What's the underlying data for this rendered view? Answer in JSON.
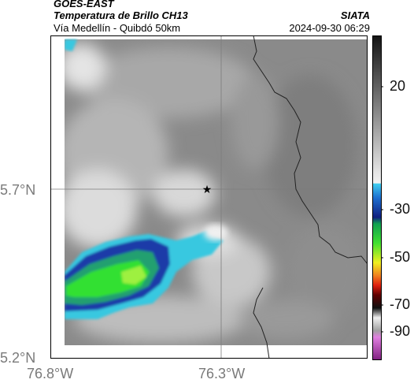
{
  "header": {
    "satellite": "GOES-EAST",
    "product": "Temperatura de Brillo CH13",
    "region": "Vía Medellín - Quibdó 50km",
    "agency": "SIATA",
    "datetime": "2024-09-30 06:29"
  },
  "axes": {
    "lat_labels": [
      "5.7°N",
      "5.2°N"
    ],
    "lon_labels": [
      "76.8°W",
      "76.3°W"
    ]
  },
  "marker": {
    "icon": "star-icon"
  },
  "colorbar": {
    "labels": [
      "20",
      "-30",
      "-50",
      "-70",
      "-90"
    ]
  },
  "colors": {
    "cold_cloud_cyan": "#38c8e0",
    "cold_cloud_blue": "#1a3aa8",
    "coldest_green": "#30e030",
    "border_line": "#222222"
  }
}
